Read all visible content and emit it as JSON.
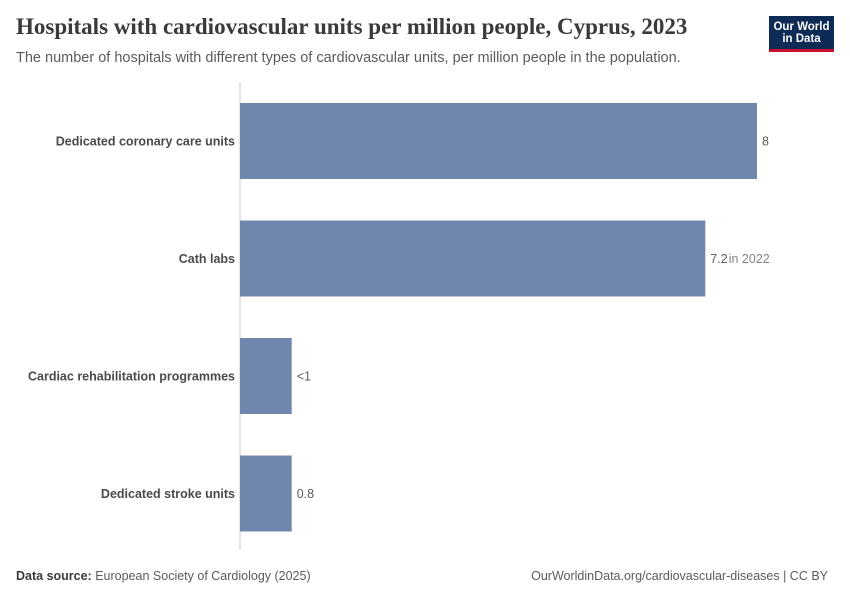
{
  "header": {
    "title": "Hospitals with cardiovascular units per million people, Cyprus, 2023",
    "subtitle": "The number of hospitals with different types of cardiovascular units, per million people in the population."
  },
  "logo": {
    "line1": "Our World",
    "line2": "in Data"
  },
  "footer": {
    "source_label": "Data source:",
    "source_value": "European Society of Cardiology (2025)",
    "link": "OurWorldinData.org/cardiovascular-diseases | CC BY"
  },
  "colors": {
    "bar": "#6f87ad",
    "axis": "#c9c9c9"
  },
  "chart_data": {
    "type": "bar",
    "orientation": "horizontal",
    "categories": [
      "Dedicated coronary care units",
      "Cath labs",
      "Cardiac rehabilitation programmes",
      "Dedicated stroke units"
    ],
    "values": [
      8,
      7.2,
      0.8,
      0.8
    ],
    "value_labels": [
      "8",
      "7.2",
      "<1",
      "0.8"
    ],
    "value_notes": [
      "",
      "in 2022",
      "",
      ""
    ],
    "xlim": [
      0,
      8
    ]
  }
}
